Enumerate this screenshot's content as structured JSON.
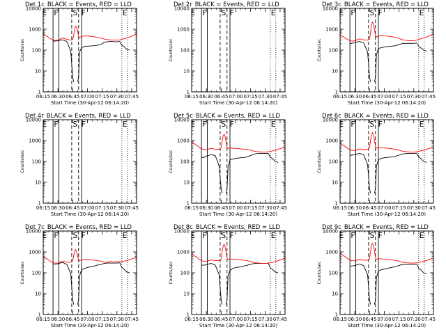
{
  "colors": {
    "events": "#000000",
    "lld": "#ff0000",
    "background": "#ffffff"
  },
  "chart_data": {
    "type": "line",
    "layout": "3x3 grid",
    "x_tick_labels": [
      "06:15",
      "06:30",
      "06:45",
      "07:00",
      "07:15",
      "07:30",
      "07:45"
    ],
    "x_ticks_minutes": [
      0,
      15,
      30,
      45,
      60,
      75,
      90
    ],
    "x_range_minutes": [
      0,
      95
    ],
    "xlabel": "Start Time (30-Apr-12 06:14:20)",
    "ylabel": "Counts/sec",
    "yscale": "log",
    "ylim": [
      1,
      10000
    ],
    "y_tick_labels": [
      "1",
      "10",
      "100",
      "1000",
      "10000"
    ],
    "legend_text": "BLACK = Events, RED = LLD",
    "markers": [
      "E",
      "F",
      "S",
      "F",
      "E"
    ],
    "marker_lines": [
      {
        "label": "E",
        "x_min": 10,
        "style": "solid"
      },
      {
        "label": "F",
        "x_min": 16,
        "style": "solid"
      },
      {
        "label": "S",
        "x_min": 29,
        "style": "dashed"
      },
      {
        "label": "S",
        "x_min": 36,
        "style": "dashed"
      },
      {
        "label": "F",
        "x_min": 39,
        "style": "solid"
      },
      {
        "label": "E",
        "x_min": 80,
        "style": "dotted"
      }
    ],
    "x": [
      0,
      5,
      10,
      12,
      15,
      18,
      20,
      24,
      28,
      30,
      31,
      32,
      33,
      34,
      35,
      36,
      37,
      39,
      42,
      45,
      50,
      55,
      60,
      62,
      65,
      68,
      72,
      75,
      78,
      80,
      82,
      85,
      88,
      92,
      95
    ],
    "panels": [
      {
        "title": "Det 1c",
        "series": [
          {
            "name": "Events",
            "values": [
              null,
              null,
              270,
              270,
              280,
              300,
              310,
              260,
              90,
              5,
              3,
              null,
              null,
              null,
              3,
              5,
              80,
              130,
              150,
              155,
              160,
              170,
              200,
              240,
              250,
              260,
              255,
              250,
              260,
              170,
              150,
              110,
              100,
              null,
              null
            ]
          },
          {
            "name": "LLD",
            "values": [
              600,
              420,
              300,
              290,
              300,
              350,
              380,
              330,
              300,
              320,
              500,
              1000,
              1400,
              1200,
              800,
              450,
              400,
              450,
              480,
              470,
              450,
              410,
              370,
              340,
              320,
              310,
              300,
              300,
              310,
              330,
              350,
              380,
              420,
              520,
              600
            ]
          }
        ]
      },
      {
        "title": "Det 2r",
        "series": []
      },
      {
        "title": "Det 3c",
        "series": [
          {
            "name": "Events",
            "values": [
              null,
              null,
              210,
              210,
              230,
              250,
              260,
              220,
              80,
              5,
              3,
              null,
              null,
              null,
              3,
              5,
              60,
              120,
              130,
              140,
              150,
              160,
              180,
              200,
              210,
              210,
              210,
              210,
              220,
              150,
              130,
              100,
              90,
              null,
              null
            ]
          },
          {
            "name": "LLD",
            "values": [
              550,
              380,
              280,
              270,
              280,
              320,
              350,
              310,
              300,
              340,
              700,
              1600,
              2200,
              1800,
              1000,
              500,
              420,
              470,
              500,
              480,
              460,
              420,
              370,
              330,
              300,
              290,
              280,
              280,
              300,
              320,
              350,
              380,
              420,
              520,
              600
            ]
          }
        ]
      },
      {
        "title": "Det 4r",
        "series": []
      },
      {
        "title": "Det 5c",
        "series": [
          {
            "name": "Events",
            "values": [
              null,
              null,
              160,
              150,
              180,
              200,
              210,
              190,
              60,
              5,
              3,
              null,
              null,
              null,
              3,
              5,
              50,
              120,
              130,
              140,
              150,
              160,
              190,
              210,
              230,
              240,
              240,
              240,
              240,
              160,
              140,
              100,
              90,
              null,
              null
            ]
          },
          {
            "name": "LLD",
            "values": [
              850,
              600,
              400,
              380,
              360,
              400,
              420,
              380,
              380,
              450,
              900,
              1600,
              2000,
              1600,
              900,
              500,
              420,
              440,
              430,
              420,
              400,
              380,
              350,
              320,
              300,
              290,
              280,
              280,
              290,
              300,
              320,
              340,
              380,
              440,
              500
            ]
          }
        ]
      },
      {
        "title": "Det 6c",
        "series": [
          {
            "name": "Events",
            "values": [
              null,
              null,
              200,
              200,
              210,
              230,
              240,
              210,
              70,
              5,
              3,
              null,
              null,
              null,
              3,
              5,
              60,
              120,
              140,
              150,
              160,
              170,
              200,
              220,
              230,
              240,
              240,
              240,
              250,
              160,
              140,
              100,
              90,
              null,
              null
            ]
          },
          {
            "name": "LLD",
            "values": [
              750,
              520,
              360,
              340,
              330,
              380,
              400,
              370,
              380,
              460,
              1000,
              1900,
              2400,
              1900,
              1000,
              520,
              430,
              460,
              450,
              440,
              420,
              390,
              350,
              320,
              300,
              290,
              280,
              280,
              290,
              300,
              320,
              340,
              380,
              440,
              500
            ]
          }
        ]
      },
      {
        "title": "Det 7c",
        "series": [
          {
            "name": "Events",
            "values": [
              null,
              null,
              260,
              260,
              270,
              300,
              310,
              250,
              90,
              5,
              3,
              null,
              null,
              null,
              3,
              5,
              70,
              140,
              160,
              180,
              200,
              230,
              260,
              280,
              290,
              290,
              290,
              290,
              300,
              180,
              150,
              110,
              100,
              null,
              null
            ]
          },
          {
            "name": "LLD",
            "values": [
              600,
              420,
              300,
              290,
              290,
              330,
              360,
              320,
              320,
              380,
              650,
              1100,
              1300,
              1000,
              650,
              420,
              380,
              420,
              440,
              430,
              410,
              380,
              350,
              320,
              310,
              350,
              320,
              350,
              330,
              340,
              360,
              380,
              420,
              500,
              560
            ]
          }
        ]
      },
      {
        "title": "Det 8c",
        "series": [
          {
            "name": "Events",
            "values": [
              null,
              null,
              230,
              230,
              240,
              270,
              280,
              230,
              80,
              5,
              3,
              null,
              null,
              null,
              3,
              5,
              70,
              130,
              160,
              180,
              190,
              220,
              250,
              270,
              280,
              280,
              280,
              280,
              290,
              170,
              150,
              110,
              100,
              null,
              null
            ]
          },
          {
            "name": "LLD",
            "values": [
              800,
              560,
              380,
              360,
              350,
              390,
              410,
              380,
              380,
              450,
              1000,
              1800,
              2300,
              1800,
              1000,
              520,
              430,
              460,
              450,
              440,
              420,
              390,
              350,
              320,
              300,
              290,
              280,
              280,
              290,
              300,
              320,
              340,
              380,
              440,
              500
            ]
          }
        ]
      },
      {
        "title": "Det 9c",
        "series": [
          {
            "name": "Events",
            "values": [
              null,
              null,
              210,
              210,
              220,
              250,
              260,
              220,
              80,
              5,
              3,
              null,
              null,
              null,
              3,
              5,
              60,
              120,
              140,
              150,
              170,
              190,
              220,
              240,
              250,
              250,
              250,
              250,
              260,
              160,
              140,
              100,
              90,
              null,
              null
            ]
          },
          {
            "name": "LLD",
            "values": [
              850,
              600,
              400,
              380,
              370,
              410,
              430,
              400,
              400,
              480,
              1050,
              2000,
              2600,
              2000,
              1100,
              540,
              440,
              470,
              460,
              450,
              430,
              400,
              360,
              330,
              310,
              300,
              290,
              290,
              300,
              310,
              330,
              350,
              390,
              450,
              520
            ]
          }
        ]
      }
    ]
  }
}
